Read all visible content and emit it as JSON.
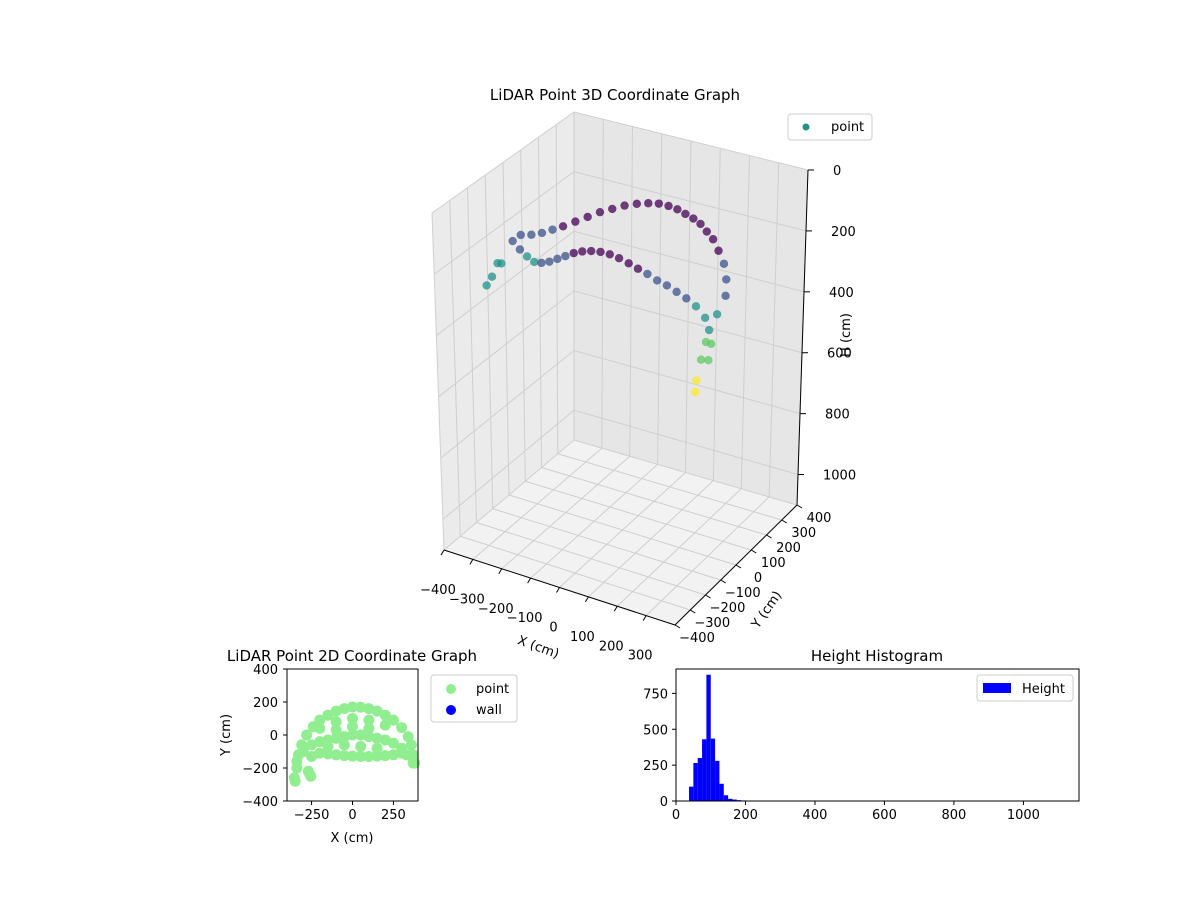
{
  "chart_data": [
    {
      "type": "scatter3d",
      "title": "LiDAR Point 3D Coordinate Graph",
      "xlabel": "X (cm)",
      "ylabel": "Y (cm)",
      "zlabel": "H (cm)",
      "xlim": [
        -400,
        400
      ],
      "ylim": [
        -400,
        400
      ],
      "zlim": [
        1100,
        0
      ],
      "x_ticks": [
        "−400",
        "−300",
        "−200",
        "−100",
        "0",
        "100",
        "200",
        "300"
      ],
      "y_ticks": [
        "−400",
        "−300",
        "−200",
        "−100",
        "0",
        "100",
        "200",
        "300",
        "400"
      ],
      "z_ticks": [
        "0",
        "200",
        "400",
        "600",
        "800",
        "1000"
      ],
      "legend": {
        "position": "top-right",
        "entries": [
          {
            "label": "point",
            "color": "#21918c"
          }
        ]
      },
      "colormap": [
        "#440154",
        "#3b528b",
        "#21918c",
        "#5ec962",
        "#fde725"
      ],
      "grid": true,
      "series": [
        {
          "name": "point",
          "points": [
            [
              -330,
              -70,
              210
            ],
            [
              -300,
              -80,
              225
            ],
            [
              -270,
              -90,
              235
            ],
            [
              -240,
              -100,
              240
            ],
            [
              -210,
              -110,
              230
            ],
            [
              -180,
              -115,
              215
            ],
            [
              -150,
              -120,
              195
            ],
            [
              -120,
              -125,
              175
            ],
            [
              -90,
              -128,
              155
            ],
            [
              -60,
              -130,
              140
            ],
            [
              -30,
              -130,
              130
            ],
            [
              0,
              -128,
              125
            ],
            [
              30,
              -126,
              125
            ],
            [
              60,
              -124,
              130
            ],
            [
              90,
              -120,
              140
            ],
            [
              120,
              -118,
              150
            ],
            [
              150,
              -115,
              160
            ],
            [
              180,
              -110,
              175
            ],
            [
              210,
              -105,
              185
            ],
            [
              240,
              -100,
              200
            ],
            [
              270,
              -95,
              215
            ],
            [
              300,
              -90,
              235
            ],
            [
              330,
              -88,
              265
            ],
            [
              345,
              -90,
              300
            ],
            [
              355,
              -95,
              340
            ],
            [
              360,
              -120,
              380
            ],
            [
              -320,
              -40,
              200
            ],
            [
              -290,
              -30,
              195
            ],
            [
              -260,
              -20,
              185
            ],
            [
              -230,
              -10,
              170
            ],
            [
              -200,
              0,
              155
            ],
            [
              -170,
              20,
              140
            ],
            [
              -140,
              40,
              125
            ],
            [
              -110,
              60,
              110
            ],
            [
              -80,
              80,
              100
            ],
            [
              -50,
              100,
              90
            ],
            [
              -20,
              120,
              85
            ],
            [
              10,
              135,
              82
            ],
            [
              40,
              145,
              80
            ],
            [
              70,
              150,
              82
            ],
            [
              100,
              150,
              85
            ],
            [
              130,
              145,
              90
            ],
            [
              160,
              140,
              95
            ],
            [
              190,
              130,
              100
            ],
            [
              220,
              115,
              110
            ],
            [
              250,
              100,
              120
            ],
            [
              280,
              80,
              140
            ],
            [
              310,
              60,
              165
            ],
            [
              335,
              30,
              195
            ],
            [
              350,
              0,
              230
            ],
            [
              -335,
              -150,
              250
            ],
            [
              -325,
              -200,
              270
            ],
            [
              -320,
              -240,
              280
            ],
            [
              -310,
              -170,
              235
            ],
            [
              355,
              -60,
              260
            ],
            [
              362,
              -140,
              310
            ],
            [
              365,
              -175,
              350
            ],
            [
              352,
              -180,
              420
            ],
            [
              348,
              -178,
              460
            ]
          ],
          "heights": [
            210,
            225,
            235,
            240,
            230,
            215,
            195,
            175,
            155,
            140,
            130,
            125,
            125,
            130,
            140,
            150,
            160,
            175,
            185,
            200,
            215,
            235,
            265,
            300,
            340,
            380,
            200,
            195,
            185,
            170,
            155,
            140,
            125,
            110,
            100,
            90,
            85,
            82,
            80,
            82,
            85,
            90,
            95,
            100,
            110,
            120,
            140,
            165,
            195,
            230,
            250,
            270,
            280,
            235,
            260,
            310,
            350,
            420,
            460
          ]
        }
      ]
    },
    {
      "type": "scatter",
      "title": "LiDAR Point 2D Coordinate Graph",
      "xlabel": "X (cm)",
      "ylabel": "Y (cm)",
      "xlim": [
        -400,
        400
      ],
      "ylim": [
        -400,
        400
      ],
      "x_ticks": [
        "−250",
        "0",
        "250"
      ],
      "y_ticks": [
        "−400",
        "−200",
        "0",
        "200",
        "400"
      ],
      "legend": {
        "position": "right-outside",
        "entries": [
          {
            "label": "point",
            "color": "#90ee90"
          },
          {
            "label": "wall",
            "color": "#0000ff"
          }
        ]
      },
      "series": [
        {
          "name": "point",
          "color": "#90ee90",
          "points": [
            [
              -340,
              -160
            ],
            [
              -330,
              -120
            ],
            [
              -310,
              -60
            ],
            [
              -280,
              0
            ],
            [
              -240,
              50
            ],
            [
              -200,
              90
            ],
            [
              -150,
              120
            ],
            [
              -100,
              145
            ],
            [
              -50,
              160
            ],
            [
              0,
              170
            ],
            [
              50,
              168
            ],
            [
              100,
              160
            ],
            [
              150,
              145
            ],
            [
              200,
              120
            ],
            [
              250,
              90
            ],
            [
              300,
              45
            ],
            [
              340,
              -10
            ],
            [
              360,
              -60
            ],
            [
              370,
              -120
            ],
            [
              370,
              -170
            ],
            [
              -300,
              -100
            ],
            [
              -250,
              -60
            ],
            [
              -200,
              -40
            ],
            [
              -150,
              -30
            ],
            [
              -100,
              -20
            ],
            [
              -50,
              -10
            ],
            [
              0,
              0
            ],
            [
              50,
              0
            ],
            [
              100,
              -10
            ],
            [
              150,
              -20
            ],
            [
              200,
              -30
            ],
            [
              250,
              -50
            ],
            [
              300,
              -80
            ],
            [
              330,
              -120
            ],
            [
              -250,
              -130
            ],
            [
              -200,
              -110
            ],
            [
              -150,
              -115
            ],
            [
              -100,
              -120
            ],
            [
              -50,
              -125
            ],
            [
              0,
              -128
            ],
            [
              50,
              -130
            ],
            [
              100,
              -130
            ],
            [
              150,
              -128
            ],
            [
              200,
              -125
            ],
            [
              250,
              -120
            ],
            [
              300,
              -110
            ],
            [
              -200,
              40
            ],
            [
              -100,
              80
            ],
            [
              0,
              100
            ],
            [
              100,
              90
            ],
            [
              200,
              60
            ],
            [
              -100,
              30
            ],
            [
              0,
              50
            ],
            [
              100,
              40
            ],
            [
              -50,
              -60
            ],
            [
              50,
              -70
            ],
            [
              150,
              -80
            ],
            [
              -150,
              -70
            ],
            [
              -355,
              -260
            ],
            [
              -340,
              -200
            ],
            [
              -255,
              -250
            ],
            [
              -270,
              -220
            ],
            [
              -350,
              -280
            ],
            [
              -260,
              -240
            ],
            [
              380,
              -170
            ]
          ]
        },
        {
          "name": "wall",
          "color": "#0000ff",
          "points": []
        }
      ]
    },
    {
      "type": "histogram",
      "title": "Height Histogram",
      "legend": {
        "position": "top-right",
        "entries": [
          {
            "label": "Height",
            "color": "#0000ff"
          }
        ]
      },
      "xlim": [
        0,
        1160
      ],
      "ylim": [
        0,
        920
      ],
      "x_ticks": [
        0,
        200,
        400,
        600,
        800,
        1000
      ],
      "y_ticks": [
        0,
        250,
        500,
        750
      ],
      "bin_width": 12.5,
      "bin_starts": [
        37.5,
        50,
        62.5,
        75,
        87.5,
        100,
        112.5,
        125,
        137.5,
        150,
        162.5,
        175,
        187.5
      ],
      "values": [
        100,
        265,
        300,
        430,
        880,
        435,
        280,
        120,
        40,
        15,
        10,
        6,
        4
      ]
    }
  ]
}
